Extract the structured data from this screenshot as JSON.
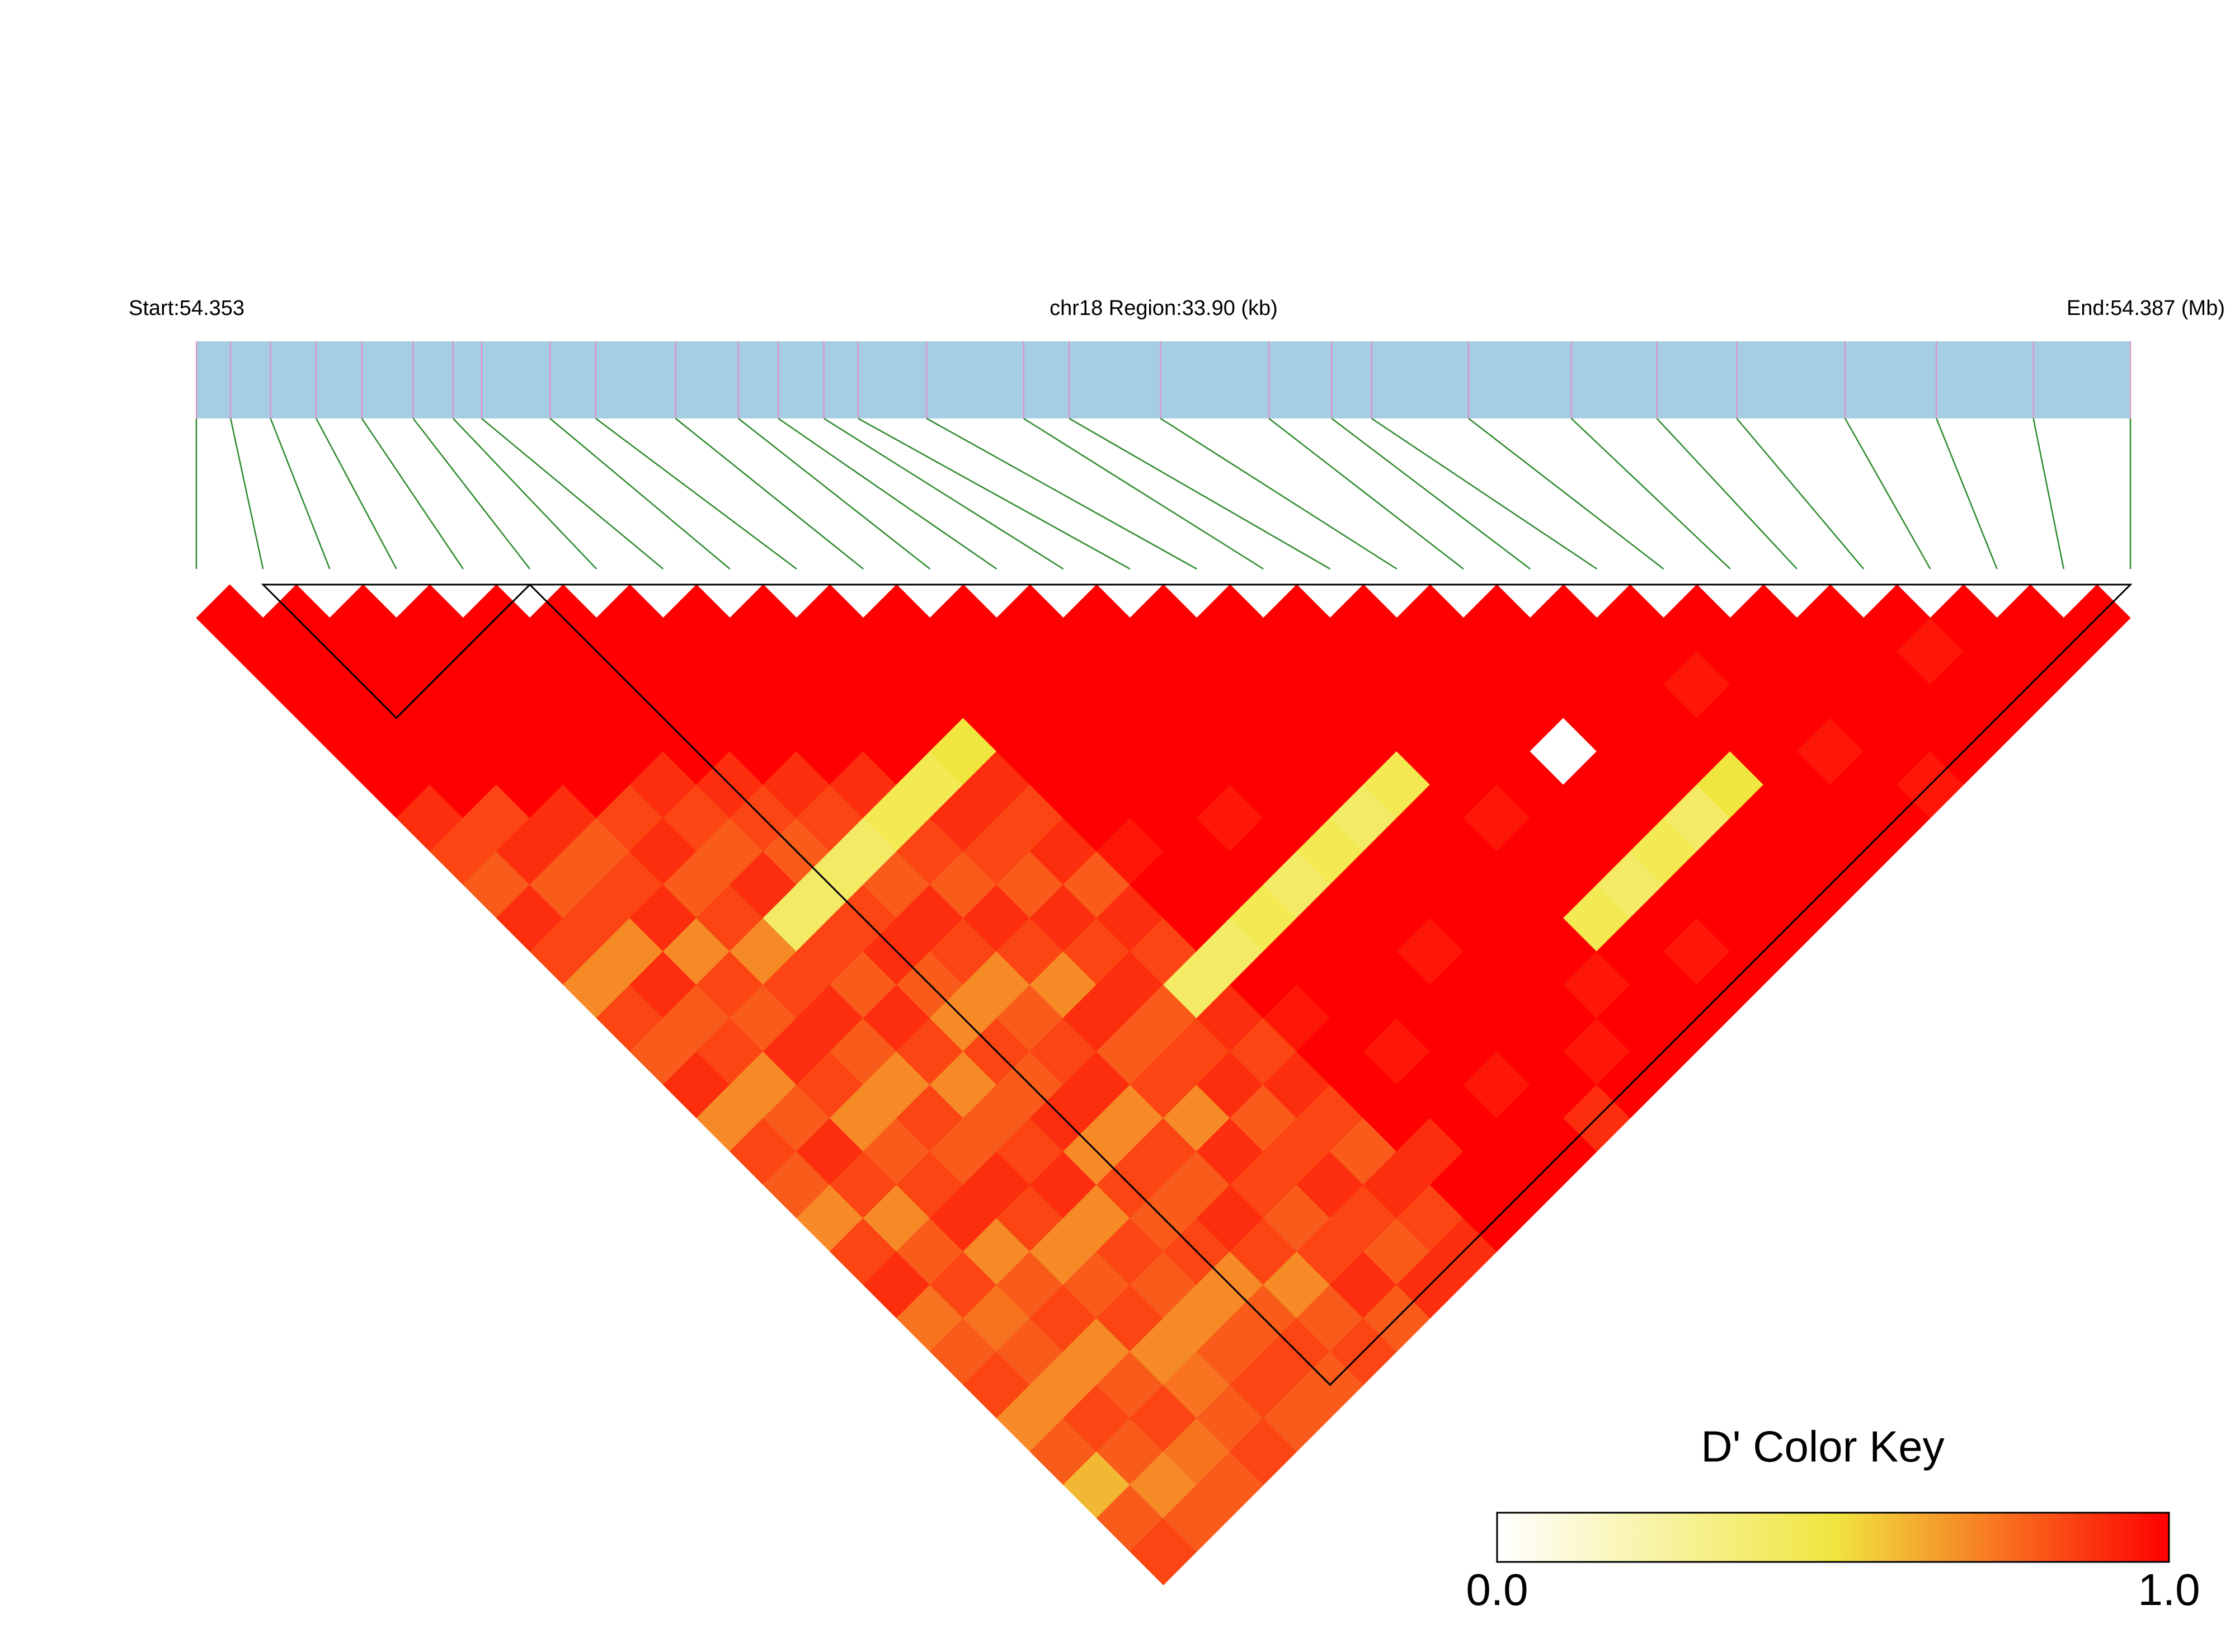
{
  "chart_data": {
    "type": "ld_heatmap",
    "start_label": "Start:54.353",
    "region_label": "chr18 Region:33.90 (kb)",
    "end_label": "End:54.387 (Mb)",
    "xlim": [
      0,
      33.9
    ],
    "snp_positions": [
      0,
      0.6,
      1.3,
      2.1,
      2.9,
      3.8,
      4.5,
      5.0,
      6.2,
      7.0,
      8.4,
      9.5,
      10.2,
      11.0,
      11.6,
      12.8,
      14.5,
      15.3,
      16.9,
      18.8,
      19.9,
      20.6,
      22.3,
      24.1,
      25.6,
      27.0,
      28.9,
      30.5,
      32.2,
      33.9
    ],
    "dprime": [
      [
        1,
        1,
        1,
        1,
        1,
        1,
        0.9,
        0.85,
        0.8,
        0.9,
        0.85,
        0.7,
        0.85,
        0.8,
        0.9,
        0.7,
        0.85,
        0.8,
        0.7,
        0.85,
        0.9,
        0.75,
        0.8,
        0.85,
        0.7,
        0.8,
        0.6,
        0.8,
        0.85
      ],
      [
        1,
        1,
        1,
        1,
        1,
        1,
        0.85,
        0.9,
        0.8,
        0.85,
        0.7,
        0.9,
        0.8,
        0.85,
        0.7,
        0.8,
        0.9,
        0.85,
        0.7,
        0.8,
        0.85,
        0.75,
        0.8,
        0.7,
        0.85,
        0.8,
        0.7,
        0.8
      ],
      [
        1,
        1,
        1,
        1,
        1,
        1,
        0.9,
        0.8,
        0.85,
        0.9,
        0.7,
        0.85,
        0.8,
        0.9,
        0.85,
        0.7,
        0.8,
        0.85,
        0.9,
        0.7,
        0.8,
        0.85,
        0.7,
        0.8,
        0.85,
        0.75,
        0.8
      ],
      [
        1,
        1,
        1,
        1,
        1,
        1,
        0.85,
        0.9,
        0.8,
        0.85,
        0.7,
        0.85,
        0.9,
        0.8,
        0.7,
        0.85,
        0.8,
        0.9,
        0.85,
        0.7,
        0.8,
        0.85,
        0.7,
        0.75,
        0.8,
        0.85
      ],
      [
        1,
        1,
        1,
        1,
        1,
        0.9,
        0.85,
        0.8,
        0.9,
        0.4,
        0.85,
        0.8,
        0.9,
        0.85,
        0.7,
        0.8,
        0.85,
        0.9,
        0.7,
        0.85,
        0.8,
        0.7,
        0.8,
        0.85,
        0.8
      ],
      [
        1,
        1,
        1,
        1,
        1,
        0.9,
        0.85,
        0.8,
        0.4,
        0.85,
        0.9,
        0.8,
        0.7,
        0.85,
        0.8,
        0.9,
        0.7,
        0.85,
        0.8,
        0.85,
        0.7,
        0.8,
        0.85,
        0.8
      ],
      [
        1,
        1,
        1,
        1,
        1,
        0.9,
        0.85,
        0.4,
        0.8,
        0.9,
        0.85,
        0.7,
        0.8,
        0.85,
        0.9,
        0.7,
        0.85,
        0.8,
        0.9,
        0.85,
        0.7,
        0.8,
        0.85
      ],
      [
        1,
        1,
        1,
        1,
        1,
        0.9,
        0.45,
        0.85,
        0.8,
        0.9,
        0.85,
        0.7,
        0.9,
        0.8,
        0.85,
        0.7,
        0.9,
        0.85,
        0.8,
        0.85,
        0.9,
        0.8
      ],
      [
        1,
        1,
        1,
        1,
        1,
        0.45,
        0.9,
        0.85,
        0.8,
        0.9,
        0.85,
        0.9,
        0.8,
        0.85,
        0.9,
        0.8,
        0.85,
        0.9,
        0.85,
        0.8,
        0.9
      ],
      [
        1,
        1,
        1,
        1,
        0.5,
        0.9,
        0.85,
        0.9,
        0.8,
        0.9,
        0.85,
        0.4,
        0.9,
        0.85,
        0.9,
        0.85,
        0.8,
        0.9,
        0.85,
        0.9
      ],
      [
        1,
        1,
        1,
        1,
        1,
        1,
        1,
        0.95,
        1,
        1,
        0.4,
        1,
        0.95,
        1,
        1,
        1,
        0.9,
        1,
        1
      ],
      [
        1,
        1,
        1,
        1,
        1,
        1,
        1,
        1,
        1,
        0.45,
        1,
        1,
        1,
        0.95,
        1,
        1,
        1,
        1
      ],
      [
        1,
        1,
        1,
        1,
        1,
        1,
        0.95,
        1,
        0.4,
        1,
        1,
        1,
        1,
        1,
        0.95,
        1,
        1
      ],
      [
        1,
        1,
        1,
        1,
        1,
        1,
        1,
        0.45,
        1,
        1,
        0.95,
        1,
        1,
        1,
        1,
        0.9
      ],
      [
        1,
        1,
        1,
        1,
        1,
        1,
        0.4,
        1,
        1,
        1,
        1,
        1,
        1,
        0.95,
        1
      ],
      [
        1,
        1,
        1,
        1,
        1,
        0.45,
        1,
        1,
        1,
        1,
        1,
        0.95,
        1,
        1
      ],
      [
        1,
        1,
        1,
        1,
        1,
        1,
        0.95,
        1,
        1,
        0.45,
        1,
        1,
        1
      ],
      [
        1,
        1,
        1,
        1,
        1,
        1,
        1,
        1,
        0.4,
        1,
        0.95,
        1
      ],
      [
        1,
        1,
        1,
        1,
        0,
        1,
        1,
        0.45,
        1,
        1,
        1
      ],
      [
        1,
        1,
        1,
        1,
        1,
        1,
        0.4,
        1,
        1,
        1
      ],
      [
        1,
        1,
        1,
        1,
        1,
        0.5,
        1,
        1,
        1
      ],
      [
        1,
        1,
        0.95,
        1,
        1,
        1,
        1,
        1
      ],
      [
        1,
        1,
        1,
        1,
        0.95,
        1,
        1
      ],
      [
        1,
        1,
        1,
        1,
        1,
        0.95
      ],
      [
        1,
        1,
        1,
        1,
        1
      ],
      [
        1,
        0.95,
        1,
        1
      ],
      [
        1,
        1,
        1
      ],
      [
        1,
        1
      ],
      [
        1
      ]
    ],
    "blocks": [
      [
        1,
        5
      ],
      [
        5,
        29
      ]
    ],
    "colors": [
      "#ffffff",
      "#f0e640",
      "#ff0000"
    ],
    "bar_color": "#a6cee3",
    "snp_line_color": "#e78ac3",
    "link_color": "#2a8a2a",
    "key_title": "D' Color Key",
    "key_ticks": [
      {
        "value": 0,
        "label": "0.0"
      },
      {
        "value": 1,
        "label": "1.0"
      }
    ]
  }
}
